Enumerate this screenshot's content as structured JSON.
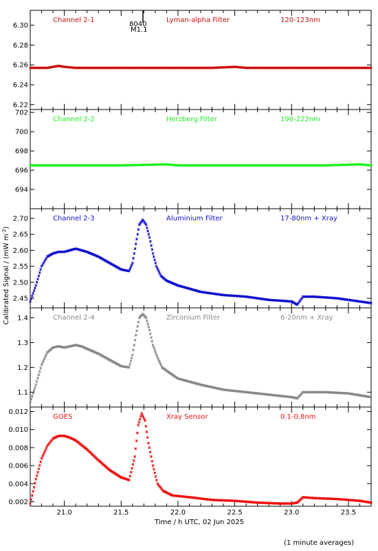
{
  "figure": {
    "ylabel": "Calibrated Signal / (mW m",
    "ylabel_sup": "-2",
    "ylabel_close": ")",
    "xlabel": "Time / h UTC, 02 Jun 2025",
    "footnote": "(1 minute averages)",
    "flare_marker": {
      "x": 21.7,
      "label_top": "8040",
      "label_bottom": "M1.1"
    }
  },
  "chart_data": [
    {
      "type": "scatter",
      "panel": 1,
      "color": "#cc1111",
      "labels": [
        "Channel 2-1",
        "Lyman-alpha Filter",
        "120-123nm"
      ],
      "xlim": [
        20.7,
        23.7
      ],
      "ylim": [
        6.215,
        6.315
      ],
      "yticks": [
        "6.22",
        "6.24",
        "6.26",
        "6.28",
        "6.30"
      ],
      "ytick_values": [
        6.22,
        6.24,
        6.26,
        6.28,
        6.3
      ],
      "series": [
        {
          "x": [
            20.7,
            20.85,
            20.95,
            21.0,
            21.1,
            21.3,
            21.6,
            21.9,
            22.3,
            22.5,
            22.6,
            22.8,
            23.2,
            23.7
          ],
          "values": [
            6.257,
            6.257,
            6.259,
            6.258,
            6.257,
            6.257,
            6.257,
            6.257,
            6.257,
            6.258,
            6.257,
            6.257,
            6.257,
            6.257
          ]
        }
      ]
    },
    {
      "type": "scatter",
      "panel": 2,
      "color": "#22ee22",
      "labels": [
        "Channel 2-2",
        "Herzberg Filter",
        "190-222nm"
      ],
      "xlim": [
        20.7,
        23.7
      ],
      "ylim": [
        692.0,
        702.3
      ],
      "yticks": [
        "694",
        "696",
        "698",
        "700",
        "702"
      ],
      "ytick_values": [
        694,
        696,
        698,
        700,
        702
      ],
      "series": [
        {
          "x": [
            20.7,
            21.0,
            21.5,
            21.9,
            22.0,
            22.3,
            22.8,
            23.3,
            23.6,
            23.7
          ],
          "values": [
            696.5,
            696.5,
            696.5,
            696.6,
            696.5,
            696.5,
            696.5,
            696.5,
            696.6,
            696.5
          ]
        }
      ]
    },
    {
      "type": "scatter",
      "panel": 3,
      "color": "#1111cc",
      "labels": [
        "Channel 2-3",
        "Aluminium Filter",
        "17-80nm + Xray"
      ],
      "xlim": [
        20.7,
        23.7
      ],
      "ylim": [
        2.42,
        2.73
      ],
      "yticks": [
        "2.45",
        "2.50",
        "2.55",
        "2.60",
        "2.65",
        "2.70"
      ],
      "ytick_values": [
        2.45,
        2.5,
        2.55,
        2.6,
        2.65,
        2.7
      ],
      "series": [
        {
          "x": [
            20.7,
            20.75,
            20.8,
            20.85,
            20.9,
            20.95,
            21.0,
            21.05,
            21.1,
            21.15,
            21.2,
            21.3,
            21.4,
            21.5,
            21.57,
            21.6,
            21.63,
            21.66,
            21.69,
            21.72,
            21.75,
            21.78,
            21.81,
            21.85,
            21.9,
            22.0,
            22.2,
            22.4,
            22.6,
            22.8,
            23.0,
            23.05,
            23.1,
            23.2,
            23.4,
            23.5,
            23.6,
            23.7
          ],
          "values": [
            2.44,
            2.49,
            2.55,
            2.58,
            2.59,
            2.595,
            2.595,
            2.6,
            2.605,
            2.6,
            2.595,
            2.58,
            2.56,
            2.54,
            2.535,
            2.56,
            2.62,
            2.68,
            2.695,
            2.68,
            2.64,
            2.59,
            2.55,
            2.52,
            2.505,
            2.49,
            2.47,
            2.46,
            2.455,
            2.445,
            2.44,
            2.43,
            2.455,
            2.455,
            2.45,
            2.445,
            2.44,
            2.435
          ]
        }
      ]
    },
    {
      "type": "scatter",
      "panel": 4,
      "color": "#888888",
      "labels": [
        "Channel 2-4",
        "Zirconium Filter",
        "6-20nm + Xray"
      ],
      "xlim": [
        20.7,
        23.7
      ],
      "ylim": [
        1.04,
        1.44
      ],
      "yticks": [
        "1.1",
        "1.2",
        "1.3",
        "1.4"
      ],
      "ytick_values": [
        1.1,
        1.2,
        1.3,
        1.4
      ],
      "series": [
        {
          "x": [
            20.7,
            20.75,
            20.8,
            20.85,
            20.9,
            20.95,
            21.0,
            21.05,
            21.1,
            21.15,
            21.2,
            21.3,
            21.4,
            21.5,
            21.57,
            21.6,
            21.63,
            21.66,
            21.69,
            21.72,
            21.75,
            21.78,
            21.82,
            21.86,
            21.92,
            22.0,
            22.2,
            22.4,
            22.6,
            22.8,
            23.0,
            23.05,
            23.1,
            23.3,
            23.5,
            23.7
          ],
          "values": [
            1.06,
            1.13,
            1.21,
            1.26,
            1.28,
            1.285,
            1.28,
            1.285,
            1.29,
            1.285,
            1.275,
            1.255,
            1.23,
            1.205,
            1.2,
            1.25,
            1.33,
            1.4,
            1.415,
            1.4,
            1.35,
            1.29,
            1.24,
            1.2,
            1.18,
            1.155,
            1.13,
            1.11,
            1.1,
            1.09,
            1.08,
            1.075,
            1.1,
            1.1,
            1.095,
            1.08
          ]
        }
      ]
    },
    {
      "type": "scatter",
      "panel": 5,
      "color": "#ee1111",
      "labels": [
        "GOES",
        "Xray Sensor",
        "0.1-0.8nm"
      ],
      "xlim": [
        20.7,
        23.7
      ],
      "xticks": [
        "21.0",
        "21.5",
        "22.0",
        "22.5",
        "23.0",
        "23.5"
      ],
      "xtick_values": [
        21.0,
        21.5,
        22.0,
        22.5,
        23.0,
        23.5
      ],
      "ylim": [
        0.0015,
        0.0125
      ],
      "yticks": [
        "0.002",
        "0.004",
        "0.006",
        "0.008",
        "0.010",
        "0.012"
      ],
      "ytick_values": [
        0.002,
        0.004,
        0.006,
        0.008,
        0.01,
        0.012
      ],
      "series": [
        {
          "x": [
            20.7,
            20.75,
            20.8,
            20.85,
            20.9,
            20.95,
            21.0,
            21.05,
            21.1,
            21.2,
            21.3,
            21.4,
            21.5,
            21.57,
            21.62,
            21.65,
            21.68,
            21.71,
            21.74,
            21.78,
            21.82,
            21.87,
            21.95,
            22.1,
            22.3,
            22.5,
            22.7,
            22.9,
            23.0,
            23.05,
            23.1,
            23.2,
            23.4,
            23.6,
            23.7
          ],
          "values": [
            0.0018,
            0.0045,
            0.0068,
            0.0082,
            0.009,
            0.0093,
            0.0093,
            0.0091,
            0.0088,
            0.0078,
            0.0066,
            0.0055,
            0.0047,
            0.0044,
            0.007,
            0.0105,
            0.0118,
            0.011,
            0.0085,
            0.006,
            0.004,
            0.0032,
            0.0027,
            0.0025,
            0.0022,
            0.0021,
            0.0019,
            0.0018,
            0.0018,
            0.0019,
            0.0025,
            0.0024,
            0.0023,
            0.0021,
            0.0019
          ]
        }
      ]
    }
  ]
}
